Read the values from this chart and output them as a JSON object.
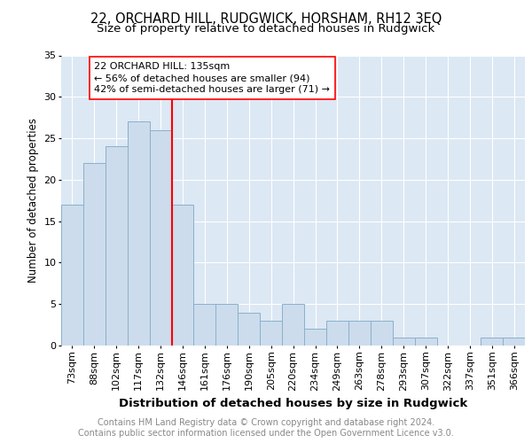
{
  "title1": "22, ORCHARD HILL, RUDGWICK, HORSHAM, RH12 3EQ",
  "title2": "Size of property relative to detached houses in Rudgwick",
  "xlabel": "Distribution of detached houses by size in Rudgwick",
  "ylabel": "Number of detached properties",
  "footer": "Contains HM Land Registry data © Crown copyright and database right 2024.\nContains public sector information licensed under the Open Government Licence v3.0.",
  "bin_labels": [
    "73sqm",
    "88sqm",
    "102sqm",
    "117sqm",
    "132sqm",
    "146sqm",
    "161sqm",
    "176sqm",
    "190sqm",
    "205sqm",
    "220sqm",
    "234sqm",
    "249sqm",
    "263sqm",
    "278sqm",
    "293sqm",
    "307sqm",
    "322sqm",
    "337sqm",
    "351sqm",
    "366sqm"
  ],
  "bar_values": [
    17,
    22,
    24,
    27,
    26,
    17,
    5,
    5,
    4,
    3,
    5,
    2,
    3,
    3,
    3,
    1,
    1,
    0,
    0,
    1,
    1
  ],
  "bar_color": "#ccdcec",
  "bar_edge_color": "#8ab0cc",
  "vline_x_index": 4,
  "vline_color": "red",
  "annotation_text": "22 ORCHARD HILL: 135sqm\n← 56% of detached houses are smaller (94)\n42% of semi-detached houses are larger (71) →",
  "annotation_box_color": "white",
  "annotation_box_edge_color": "red",
  "ylim": [
    0,
    35
  ],
  "yticks": [
    0,
    5,
    10,
    15,
    20,
    25,
    30,
    35
  ],
  "axes_bg_color": "#dce8f4",
  "grid_color": "white",
  "title1_fontsize": 10.5,
  "title2_fontsize": 9.5,
  "xlabel_fontsize": 9.5,
  "ylabel_fontsize": 8.5,
  "tick_fontsize": 8,
  "annotation_fontsize": 8,
  "footer_fontsize": 7,
  "footer_color": "#888888"
}
